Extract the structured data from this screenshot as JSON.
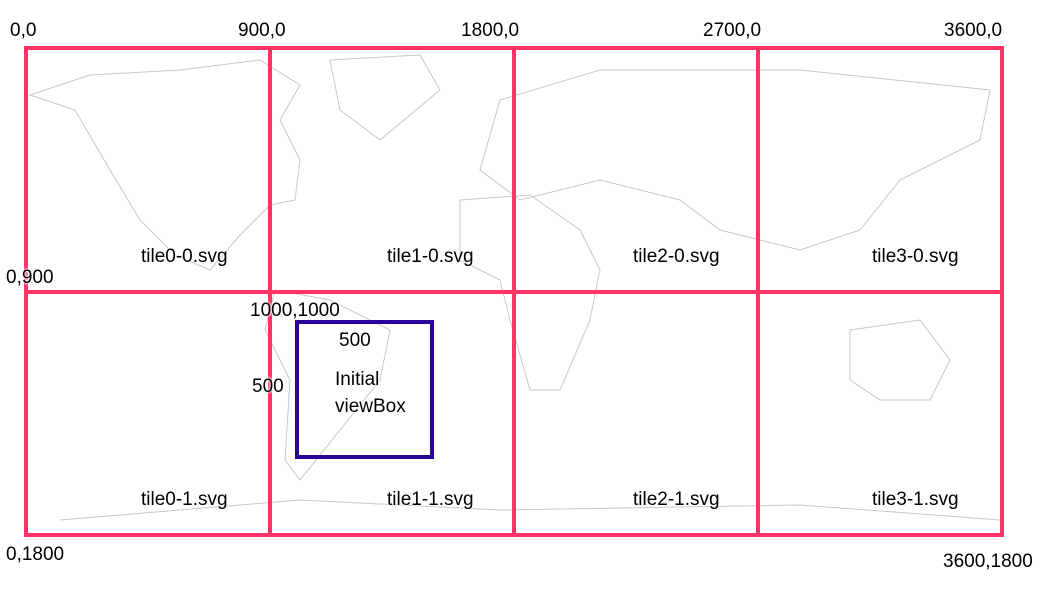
{
  "colors": {
    "tile_grid": "#ff3366",
    "viewbox": "#2b0399",
    "map_outline": "#c8c8c8"
  },
  "corner_labels": {
    "top": [
      "0,0",
      "900,0",
      "1800,0",
      "2700,0",
      "3600,0"
    ],
    "left_mid": "0,900",
    "bottom_left": "0,1800",
    "bottom_right": "3600,1800"
  },
  "tiles": [
    [
      "tile0-0.svg",
      "tile1-0.svg",
      "tile2-0.svg",
      "tile3-0.svg"
    ],
    [
      "tile0-1.svg",
      "tile1-1.svg",
      "tile2-1.svg",
      "tile3-1.svg"
    ]
  ],
  "viewbox": {
    "origin_label": "1000,1000",
    "width_label": "500",
    "height_label": "500",
    "title_line1": "Initial",
    "title_line2": "viewBox"
  }
}
